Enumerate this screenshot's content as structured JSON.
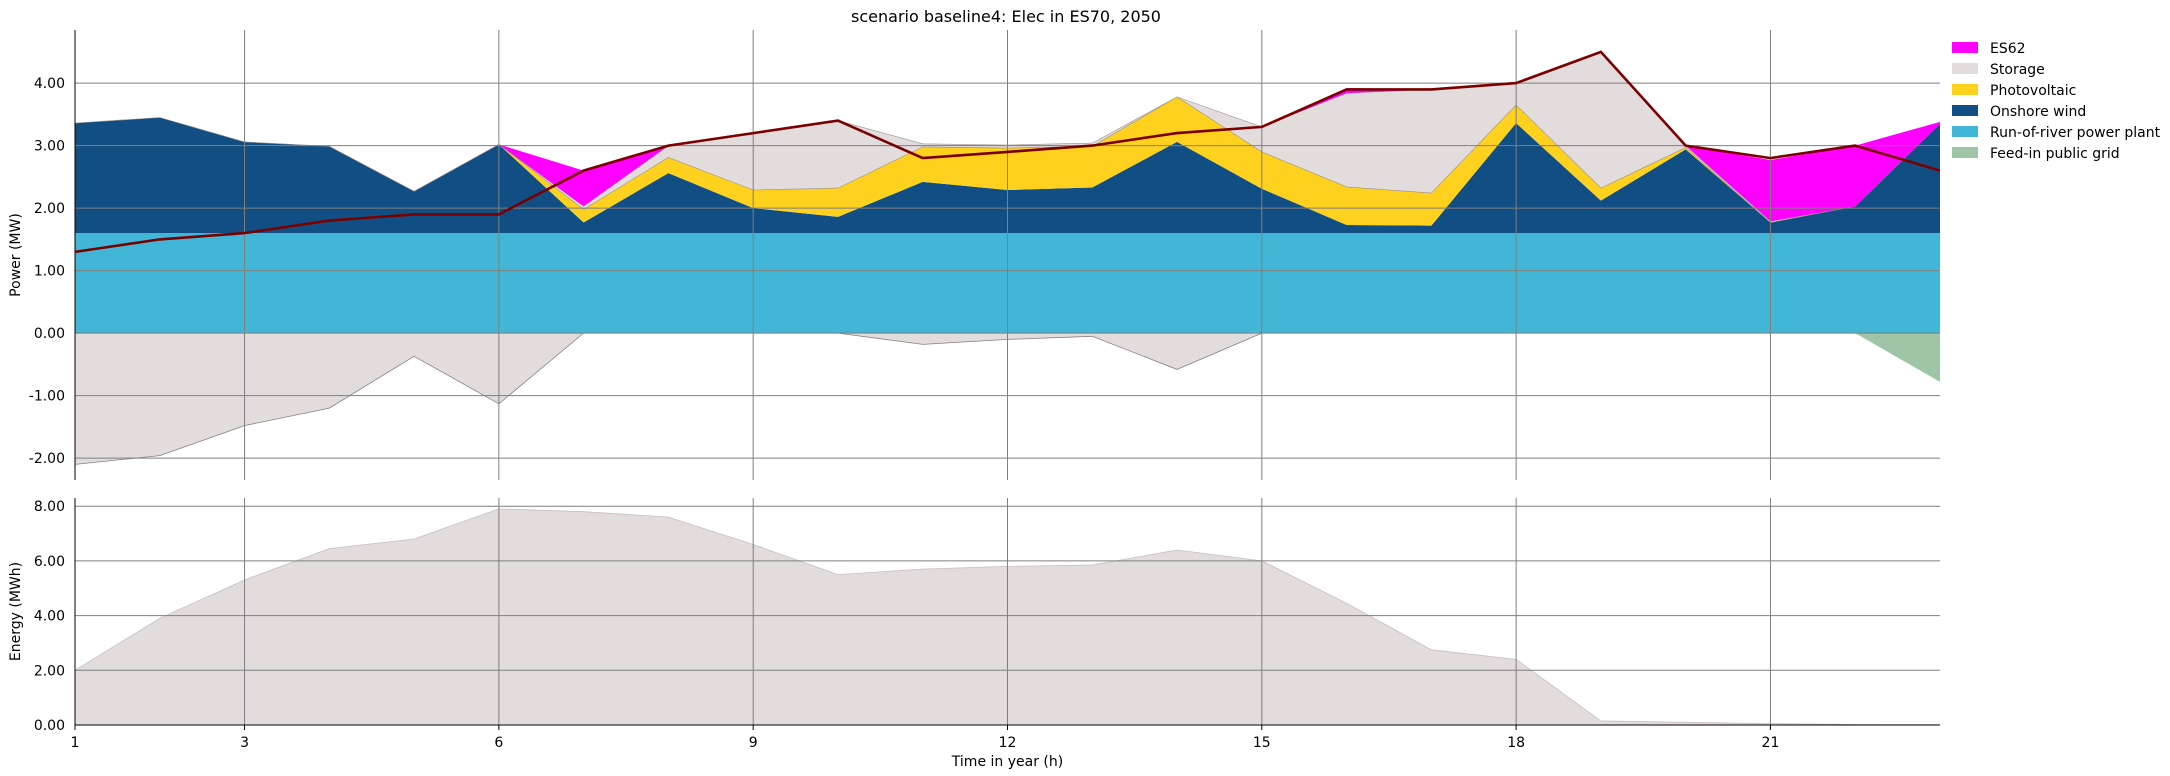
{
  "title": "scenario baseline4: Elec in ES70, 2050",
  "chart_data": [
    {
      "type": "area",
      "ylabel": "Power (MW)",
      "ylim": [
        -2.35,
        4.85
      ],
      "yticks": [
        4.0,
        3.0,
        2.0,
        1.0,
        0.0,
        -1.0,
        -2.0
      ],
      "ytick_labels": [
        "4.00",
        "3.00",
        "2.00",
        "1.00",
        "0.00",
        "-1.00",
        "-2.00"
      ],
      "x": [
        1,
        2,
        3,
        4,
        5,
        6,
        7,
        8,
        9,
        10,
        11,
        12,
        13,
        14,
        15,
        16,
        17,
        18,
        19,
        20,
        21,
        22,
        23
      ],
      "grid": true,
      "legend_placement": "right",
      "stack_positive": [
        {
          "name": "Run-of-river power plant",
          "color": "#42b6d6",
          "values": [
            1.6,
            1.6,
            1.6,
            1.6,
            1.6,
            1.6,
            1.6,
            1.6,
            1.6,
            1.6,
            1.6,
            1.6,
            1.6,
            1.6,
            1.6,
            1.6,
            1.6,
            1.6,
            1.6,
            1.6,
            1.6,
            1.6,
            1.6
          ]
        },
        {
          "name": "Onshore wind",
          "color": "#114e83",
          "values": [
            1.76,
            1.85,
            1.46,
            1.39,
            0.67,
            1.42,
            0.17,
            0.96,
            0.4,
            0.26,
            0.82,
            0.69,
            0.73,
            1.46,
            0.71,
            0.13,
            0.12,
            1.76,
            0.52,
            1.34,
            0.17,
            0.43,
            1.75
          ]
        },
        {
          "name": "Photovoltaic",
          "color": "#fdd11d",
          "values": [
            0,
            0,
            0,
            0,
            0,
            0,
            0.21,
            0.25,
            0.29,
            0.46,
            0.56,
            0.67,
            0.66,
            0.72,
            0.59,
            0.61,
            0.52,
            0.29,
            0.2,
            0.03,
            0,
            0,
            0
          ]
        },
        {
          "name": "Storage",
          "color": "#e2dcdc",
          "values": [
            0,
            0,
            0,
            0,
            0,
            0,
            0.05,
            0.19,
            0.92,
            1.08,
            0.05,
            0.05,
            0.05,
            0,
            0.4,
            1.5,
            1.66,
            0.35,
            2.18,
            0.03,
            0.02,
            0,
            0
          ]
        },
        {
          "name": "ES62",
          "color": "#ff00ff",
          "values": [
            0,
            0,
            0,
            0,
            0,
            0,
            0.57,
            0,
            0,
            0,
            0,
            0,
            0,
            0,
            0,
            0.08,
            0,
            0,
            0,
            0,
            0.98,
            0.97,
            0.03
          ]
        }
      ],
      "stack_negative": [
        {
          "name": "Storage",
          "color": "#e2dcdc",
          "values": [
            -2.1,
            -1.96,
            -1.48,
            -1.2,
            -0.37,
            -1.13,
            0,
            0,
            0,
            0,
            -0.18,
            -0.1,
            -0.05,
            -0.58,
            0,
            0,
            0,
            0,
            0,
            0,
            0,
            0,
            0
          ]
        },
        {
          "name": "Feed-in public grid",
          "color": "#9ec6a6",
          "values": [
            0,
            0,
            0,
            0,
            0,
            0,
            0,
            0,
            0,
            0,
            0,
            0,
            0,
            0,
            0,
            0,
            0,
            0,
            0,
            0,
            0,
            0,
            -0.78
          ]
        }
      ],
      "demand_line": {
        "color": "#7a0000",
        "values": [
          1.3,
          1.5,
          1.6,
          1.8,
          1.9,
          1.9,
          2.6,
          3.0,
          3.2,
          3.4,
          2.8,
          2.9,
          3.0,
          3.2,
          3.3,
          3.9,
          3.9,
          4.0,
          4.5,
          3.0,
          2.8,
          3.0,
          2.6
        ]
      }
    },
    {
      "type": "area",
      "ylabel": "Energy (MWh)",
      "xlabel": "Time in year (h)",
      "ylim": [
        0,
        8.3
      ],
      "yticks": [
        8.0,
        6.0,
        4.0,
        2.0,
        0.0
      ],
      "ytick_labels": [
        "8.00",
        "6.00",
        "4.00",
        "2.00",
        "0.00"
      ],
      "x": [
        1,
        2,
        3,
        4,
        5,
        6,
        7,
        8,
        9,
        10,
        11,
        12,
        13,
        14,
        15,
        16,
        17,
        18,
        19,
        20,
        21,
        22,
        23
      ],
      "xticks": [
        1,
        3,
        6,
        9,
        12,
        15,
        18,
        21
      ],
      "xtick_labels": [
        "1",
        "3",
        "6",
        "9",
        "12",
        "15",
        "18",
        "21"
      ],
      "grid": true,
      "series": [
        {
          "name": "Storage",
          "color": "#e2dcdc",
          "values": [
            2.0,
            3.9,
            5.3,
            6.45,
            6.8,
            7.9,
            7.8,
            7.6,
            6.6,
            5.5,
            5.7,
            5.8,
            5.85,
            6.4,
            6.0,
            4.45,
            2.75,
            2.4,
            0.15,
            0.1,
            0.05,
            0.02,
            0.01
          ]
        }
      ]
    }
  ],
  "legend": [
    {
      "label": "ES62",
      "color": "#ff00ff"
    },
    {
      "label": "Storage",
      "color": "#e2dcdc"
    },
    {
      "label": "Photovoltaic",
      "color": "#fdd11d"
    },
    {
      "label": "Onshore wind",
      "color": "#114e83"
    },
    {
      "label": "Run-of-river power plant",
      "color": "#42b6d6"
    },
    {
      "label": "Feed-in public grid",
      "color": "#9ec6a6"
    }
  ]
}
